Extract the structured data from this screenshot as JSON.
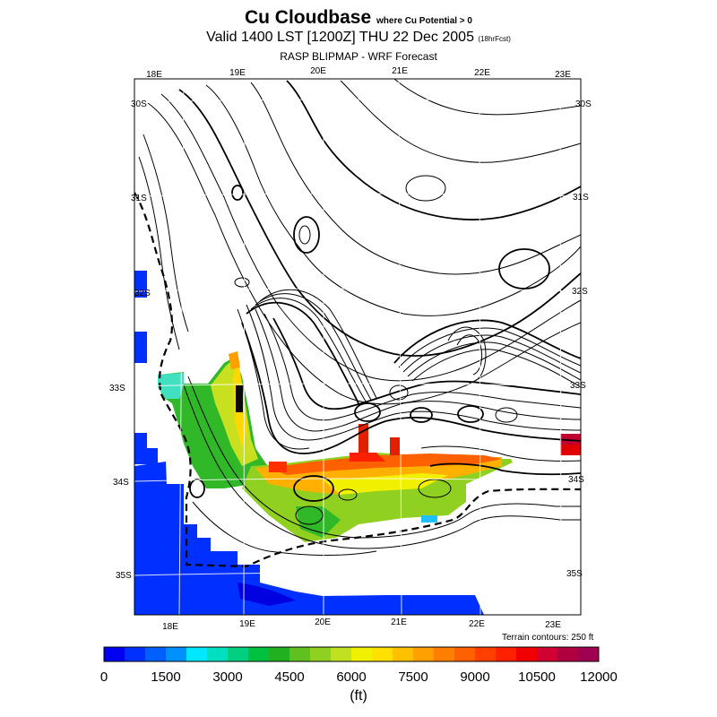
{
  "header": {
    "title": "Cu Cloudbase",
    "title_note": "where Cu Potential > 0",
    "valid_line": "Valid 1400 LST [1200Z] THU 22 Dec 2005",
    "fcst_note": "(18hrFcst)",
    "subtitle": "RASP BLIPMAP - WRF Forecast"
  },
  "map": {
    "lon_labels_top": [
      "18E",
      "19E",
      "20E",
      "21E",
      "22E",
      "23E"
    ],
    "lon_labels_bottom": [
      "18E",
      "19E",
      "20E",
      "21E",
      "22E",
      "23E"
    ],
    "lat_labels_left": [
      "30S",
      "31S",
      "32S",
      "33S",
      "34S",
      "35S"
    ],
    "lat_labels_right": [
      "30S",
      "31S",
      "32S",
      "33S",
      "34S",
      "35S"
    ],
    "terrain_note": "Terrain contours: 250 ft"
  },
  "colorbar": {
    "colors": [
      "#0000f0",
      "#0030ff",
      "#0060ff",
      "#0090ff",
      "#00e8ff",
      "#00e0c0",
      "#00d080",
      "#00c040",
      "#20b020",
      "#60c020",
      "#90d020",
      "#c0e020",
      "#f0f000",
      "#ffe000",
      "#ffc000",
      "#ffa000",
      "#ff8000",
      "#ff6000",
      "#ff4000",
      "#ff2000",
      "#f00000",
      "#d00030",
      "#b00040",
      "#a00050"
    ],
    "tick_labels": [
      "0",
      "1500",
      "3000",
      "4500",
      "6000",
      "7500",
      "9000",
      "10500",
      "12000"
    ],
    "unit": "(ft)"
  },
  "legend_colors": {
    "ocean": "#0030ff",
    "frame": "#000000"
  }
}
